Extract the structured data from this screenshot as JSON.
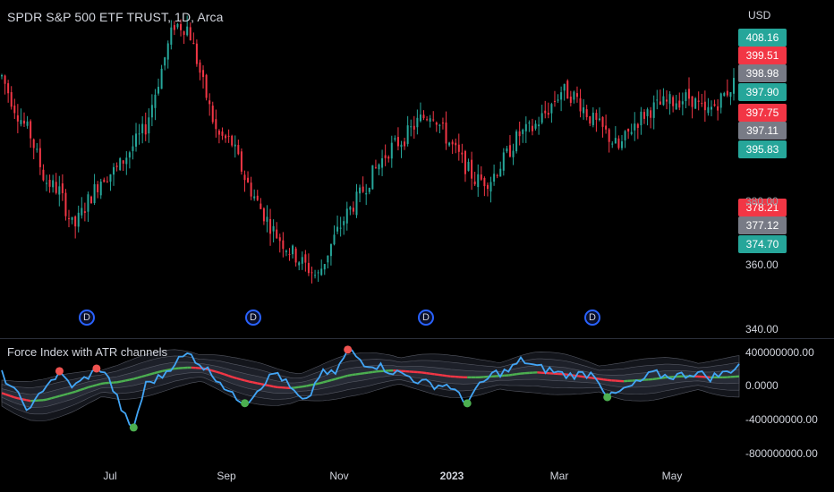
{
  "header": {
    "symbol_title": "SPDR S&P 500 ETF TRUST, 1D, Arca",
    "indicator_title": "Force Index with ATR channels",
    "currency": "USD"
  },
  "price_labels": [
    {
      "value": "408.16",
      "color": "#26a69a"
    },
    {
      "value": "399.51",
      "color": "#f23645"
    },
    {
      "value": "398.98",
      "color": "#787b86"
    },
    {
      "value": "397.90",
      "color": "#26a69a"
    },
    {
      "value": "397.75",
      "color": "#f23645"
    },
    {
      "value": "397.11",
      "color": "#787b86"
    },
    {
      "value": "395.83",
      "color": "#26a69a"
    },
    {
      "value": "378.21",
      "color": "#f23645"
    },
    {
      "value": "377.12",
      "color": "#787b86"
    },
    {
      "value": "374.70",
      "color": "#26a69a"
    }
  ],
  "price_axis": [
    "380.00",
    "360.00",
    "340.00"
  ],
  "indicator_axis": [
    "400000000.00",
    "0.0000",
    "-400000000.00",
    "-800000000.00"
  ],
  "x_axis": [
    "Jul",
    "Sep",
    "Nov",
    "2023",
    "Mar",
    "May"
  ],
  "dividend_marker_label": "D",
  "colors": {
    "up": "#26a69a",
    "down": "#f23645",
    "force_line": "#42a5f5",
    "ema_up": "#4caf50",
    "ema_down": "#f23645",
    "channel": "#787b86",
    "background": "#000000"
  },
  "chart_data": [
    {
      "type": "candlestick",
      "title": "SPDR S&P 500 ETF TRUST, 1D, Arca",
      "ylim": [
        336,
        432
      ],
      "x": [
        "Jul",
        "Sep",
        "Nov",
        "2023",
        "Mar",
        "May"
      ],
      "trend_closes": [
        410,
        400,
        393,
        380,
        377,
        366,
        374,
        381,
        383,
        389,
        395,
        410,
        425,
        424,
        408,
        393,
        391,
        380,
        372,
        365,
        360,
        356,
        352,
        362,
        370,
        376,
        383,
        389,
        392,
        397,
        400,
        392,
        386,
        380,
        380,
        386,
        393,
        395,
        400,
        406,
        404,
        398,
        394,
        389,
        396,
        400,
        402,
        403,
        404,
        399,
        403,
        408
      ]
    },
    {
      "type": "line",
      "title": "Force Index with ATR channels",
      "ylim": [
        -800000000,
        400000000
      ],
      "series": [
        {
          "values": [
            50000000,
            -150000000,
            -320000000,
            -50000000,
            50000000,
            -80000000,
            40000000,
            120000000,
            -200000000,
            -540000000,
            -40000000,
            20000000,
            180000000,
            260000000,
            120000000,
            0,
            -180000000,
            -220000000,
            -50000000,
            80000000,
            -100000000,
            -260000000,
            60000000,
            50000000,
            300000000,
            170000000,
            140000000,
            80000000,
            40000000,
            -30000000,
            -60000000,
            -60000000,
            -240000000,
            -80000000,
            60000000,
            80000000,
            200000000,
            120000000,
            90000000,
            40000000,
            50000000,
            60000000,
            -190000000,
            -110000000,
            -40000000,
            60000000,
            30000000,
            40000000,
            70000000,
            20000000,
            60000000,
            150000000
          ]
        },
        {
          "values": [
            -140000000,
            -190000000,
            -220000000,
            -210000000,
            -170000000,
            -130000000,
            -80000000,
            -40000000,
            -30000000,
            0,
            40000000,
            80000000,
            110000000,
            120000000,
            110000000,
            70000000,
            20000000,
            -20000000,
            -50000000,
            -80000000,
            -90000000,
            -70000000,
            -40000000,
            0,
            40000000,
            60000000,
            80000000,
            90000000,
            80000000,
            70000000,
            50000000,
            30000000,
            20000000,
            20000000,
            30000000,
            40000000,
            60000000,
            70000000,
            60000000,
            50000000,
            30000000,
            10000000,
            -10000000,
            -20000000,
            -10000000,
            0,
            20000000,
            30000000,
            30000000,
            20000000,
            20000000,
            30000000
          ]
        }
      ]
    }
  ]
}
